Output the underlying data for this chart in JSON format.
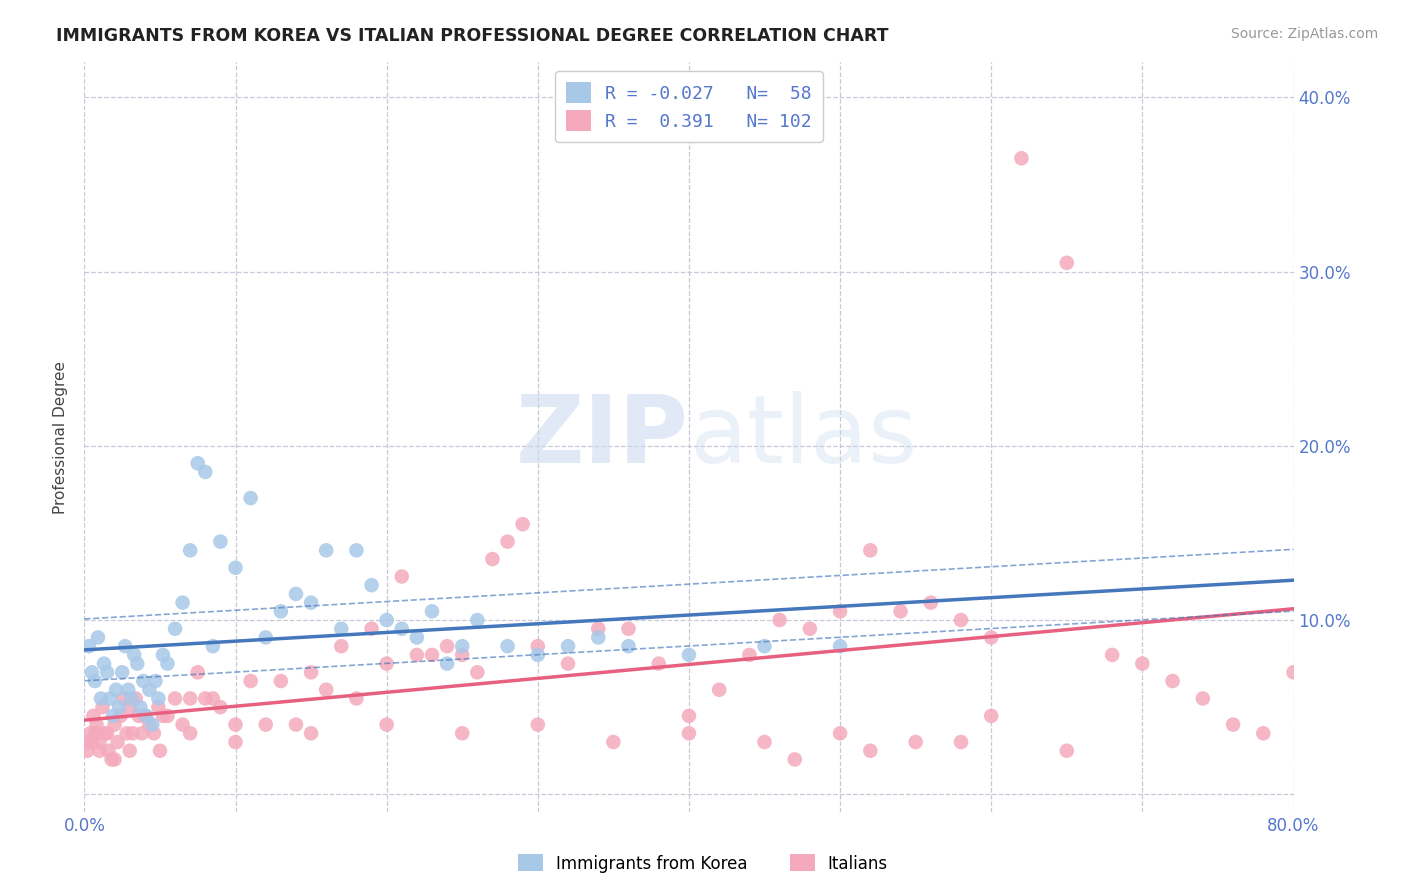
{
  "title": "IMMIGRANTS FROM KOREA VS ITALIAN PROFESSIONAL DEGREE CORRELATION CHART",
  "source_text": "Source: ZipAtlas.com",
  "ylabel": "Professional Degree",
  "x_min": 0.0,
  "x_max": 80.0,
  "y_min": -1.0,
  "y_max": 42.0,
  "korea_color": "#A8C8E8",
  "italian_color": "#F4AABC",
  "korea_line_color": "#4477BB",
  "italian_line_color": "#E86080",
  "korea_R": -0.027,
  "korea_N": 58,
  "italian_R": 0.391,
  "italian_N": 102,
  "legend_label_korea": "Immigrants from Korea",
  "legend_label_italian": "Italians",
  "watermark_zip": "ZIP",
  "watermark_atlas": "atlas",
  "title_color": "#222222",
  "axis_label_color": "#5577CC",
  "grid_color": "#C8C8D8",
  "legend_r_color": "#5577CC",
  "legend_n_color": "#5577CC",
  "korea_scatter_x": [
    0.3,
    0.5,
    0.7,
    0.9,
    1.1,
    1.3,
    1.5,
    1.7,
    1.9,
    2.1,
    2.3,
    2.5,
    2.7,
    2.9,
    3.1,
    3.3,
    3.5,
    3.7,
    3.9,
    4.1,
    4.3,
    4.5,
    4.7,
    4.9,
    5.2,
    5.5,
    6.0,
    6.5,
    7.0,
    7.5,
    8.0,
    8.5,
    9.0,
    10.0,
    11.0,
    12.0,
    13.0,
    14.0,
    15.0,
    16.0,
    17.0,
    18.0,
    19.0,
    20.0,
    21.0,
    22.0,
    23.0,
    24.0,
    25.0,
    26.0,
    28.0,
    30.0,
    32.0,
    34.0,
    36.0,
    40.0,
    45.0,
    50.0
  ],
  "korea_scatter_y": [
    8.5,
    7.0,
    6.5,
    9.0,
    5.5,
    7.5,
    7.0,
    5.5,
    4.5,
    6.0,
    5.0,
    7.0,
    8.5,
    6.0,
    5.5,
    8.0,
    7.5,
    5.0,
    6.5,
    4.5,
    6.0,
    4.0,
    6.5,
    5.5,
    8.0,
    7.5,
    9.5,
    11.0,
    14.0,
    19.0,
    18.5,
    8.5,
    14.5,
    13.0,
    17.0,
    9.0,
    10.5,
    11.5,
    11.0,
    14.0,
    9.5,
    14.0,
    12.0,
    10.0,
    9.5,
    9.0,
    10.5,
    7.5,
    8.5,
    10.0,
    8.5,
    8.0,
    8.5,
    9.0,
    8.5,
    8.0,
    8.5,
    8.5
  ],
  "italian_scatter_x": [
    0.2,
    0.4,
    0.6,
    0.8,
    1.0,
    1.2,
    1.4,
    1.6,
    1.8,
    2.0,
    2.2,
    2.4,
    2.6,
    2.8,
    3.0,
    3.2,
    3.4,
    3.6,
    3.8,
    4.0,
    4.3,
    4.6,
    4.9,
    5.2,
    5.5,
    6.0,
    6.5,
    7.0,
    7.5,
    8.0,
    8.5,
    9.0,
    10.0,
    11.0,
    12.0,
    13.0,
    14.0,
    15.0,
    16.0,
    17.0,
    18.0,
    19.0,
    20.0,
    21.0,
    22.0,
    23.0,
    24.0,
    25.0,
    26.0,
    27.0,
    28.0,
    29.0,
    30.0,
    32.0,
    34.0,
    36.0,
    38.0,
    40.0,
    42.0,
    44.0,
    46.0,
    48.0,
    50.0,
    52.0,
    54.0,
    56.0,
    58.0,
    60.0,
    62.0,
    65.0,
    68.0,
    70.0,
    72.0,
    74.0,
    76.0,
    78.0,
    80.0,
    45.0,
    50.0,
    55.0,
    60.0,
    65.0,
    58.0,
    52.0,
    47.0,
    40.0,
    35.0,
    30.0,
    25.0,
    20.0,
    15.0,
    10.0,
    7.0,
    5.0,
    3.0,
    2.0,
    1.5,
    1.0,
    0.7,
    0.5,
    0.3,
    0.8
  ],
  "italian_scatter_y": [
    2.5,
    3.5,
    4.5,
    4.0,
    2.5,
    5.0,
    3.5,
    2.5,
    2.0,
    4.0,
    3.0,
    4.5,
    5.5,
    3.5,
    5.0,
    3.5,
    5.5,
    4.5,
    3.5,
    4.5,
    4.0,
    3.5,
    5.0,
    4.5,
    4.5,
    5.5,
    4.0,
    5.5,
    7.0,
    5.5,
    5.5,
    5.0,
    4.0,
    6.5,
    4.0,
    6.5,
    4.0,
    7.0,
    6.0,
    8.5,
    5.5,
    9.5,
    7.5,
    12.5,
    8.0,
    8.0,
    8.5,
    8.0,
    7.0,
    13.5,
    14.5,
    15.5,
    8.5,
    7.5,
    9.5,
    9.5,
    7.5,
    4.5,
    6.0,
    8.0,
    10.0,
    9.5,
    10.5,
    14.0,
    10.5,
    11.0,
    10.0,
    9.0,
    36.5,
    30.5,
    8.0,
    7.5,
    6.5,
    5.5,
    4.0,
    3.5,
    7.0,
    3.0,
    3.5,
    3.0,
    4.5,
    2.5,
    3.0,
    2.5,
    2.0,
    3.5,
    3.0,
    4.0,
    3.5,
    4.0,
    3.5,
    3.0,
    3.5,
    2.5,
    2.5,
    2.0,
    3.5,
    3.0,
    3.5,
    3.0,
    3.0,
    3.5
  ]
}
